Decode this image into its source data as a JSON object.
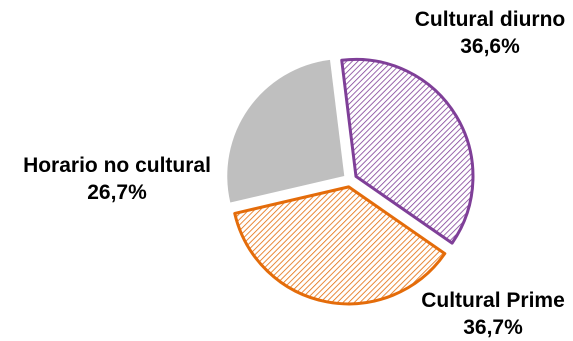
{
  "chart_data": {
    "type": "pie",
    "slices": [
      {
        "name": "Cultural diurno",
        "value": 36.6,
        "value_label": "36,6%",
        "color": "#7f3f98",
        "fill": "hatched"
      },
      {
        "name": "Cultural Prime",
        "value": 36.7,
        "value_label": "36,7%",
        "color": "#e46c0a",
        "fill": "hatched"
      },
      {
        "name": "Horario no cultural",
        "value": 26.7,
        "value_label": "26,7%",
        "color": "#bfbfbf",
        "fill": "solid"
      }
    ],
    "legend": "none",
    "exploded": true
  }
}
